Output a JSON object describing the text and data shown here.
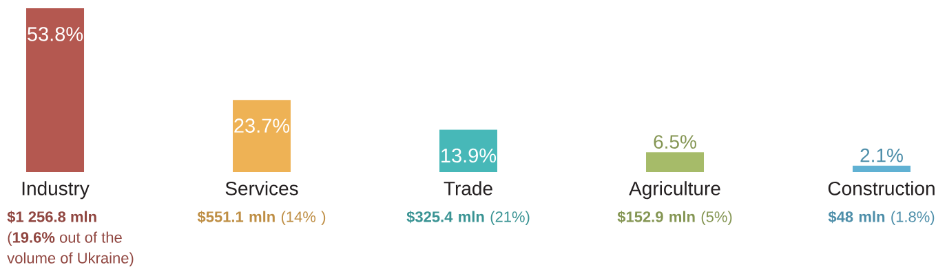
{
  "chart_data": {
    "type": "bar",
    "categories": [
      "Industry",
      "Services",
      "Trade",
      "Agriculture",
      "Construction"
    ],
    "values": [
      53.8,
      23.7,
      13.9,
      6.5,
      2.1
    ],
    "value_labels": [
      "53.8%",
      "23.7%",
      "13.9%",
      "6.5%",
      "2.1%"
    ],
    "colors": [
      "#b45850",
      "#eeb255",
      "#47b8b8",
      "#a6bb69",
      "#60b1d3"
    ],
    "annotations": [
      "**$1 256.8 mln** (**19.6%** out of the volume of Ukraine)",
      "**$551.1 mln** (14% )",
      "**$325.4 mln** (21%)",
      "**$152.9 mln** (5%)",
      "**$48 mln** (1.8%)"
    ]
  }
}
